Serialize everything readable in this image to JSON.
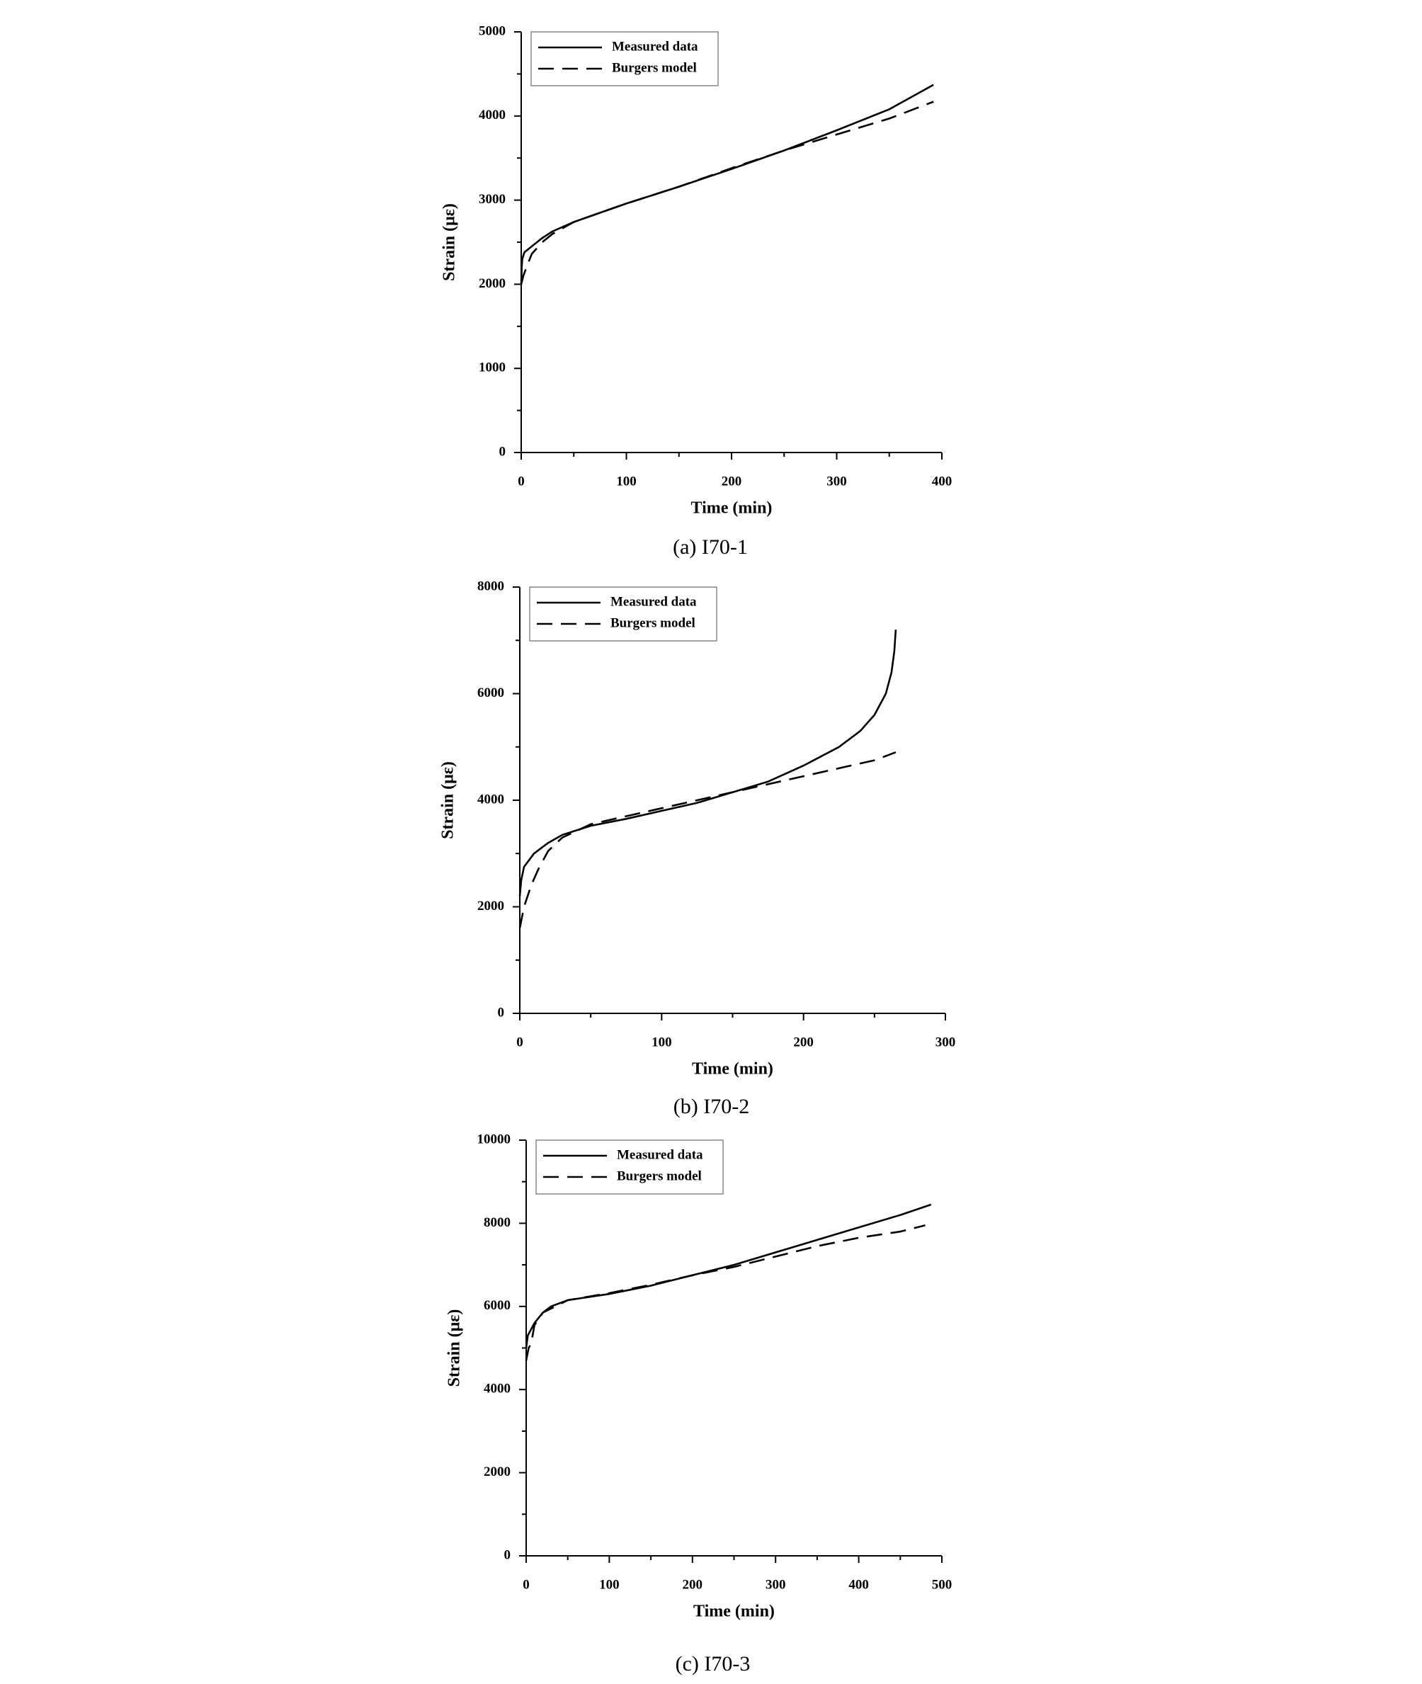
{
  "chart_data": [
    {
      "type": "line",
      "caption": "(a) I70-1",
      "xlabel": "Time (min)",
      "ylabel": "Strain (με)",
      "xlim": [
        0,
        400
      ],
      "ylim": [
        0,
        5000
      ],
      "xticks": [
        0,
        100,
        200,
        300,
        400
      ],
      "yticks": [
        0,
        1000,
        2000,
        3000,
        4000,
        5000
      ],
      "xminorticks": [
        50,
        150,
        250,
        350
      ],
      "yminorticks": [
        500,
        1500,
        2500,
        3500,
        4500
      ],
      "legend": "upper left",
      "series": [
        {
          "name": "Measured data",
          "color": "#000000",
          "style": "solid",
          "x": [
            0,
            0.5,
            1,
            3,
            10,
            20,
            30,
            50,
            75,
            100,
            150,
            200,
            250,
            300,
            350,
            392
          ],
          "values": [
            2000,
            2200,
            2300,
            2380,
            2450,
            2550,
            2630,
            2740,
            2850,
            2960,
            3160,
            3370,
            3590,
            3830,
            4080,
            4370
          ]
        },
        {
          "name": "Burgers model",
          "color": "#000000",
          "style": "dashed",
          "x": [
            0,
            2,
            5,
            10,
            20,
            30,
            50,
            100,
            150,
            200,
            250,
            300,
            350,
            392
          ],
          "values": [
            2000,
            2100,
            2200,
            2360,
            2500,
            2600,
            2740,
            2960,
            3160,
            3380,
            3590,
            3780,
            3970,
            4170
          ]
        }
      ]
    },
    {
      "type": "line",
      "caption": "(b) I70-2",
      "xlabel": "Time (min)",
      "ylabel": "Strain (με)",
      "xlim": [
        0,
        300
      ],
      "ylim": [
        0,
        8000
      ],
      "xticks": [
        0,
        100,
        200,
        300
      ],
      "yticks": [
        0,
        2000,
        4000,
        6000,
        8000
      ],
      "xminorticks": [
        50,
        150,
        250
      ],
      "yminorticks": [
        1000,
        3000,
        5000,
        7000
      ],
      "legend": "upper left",
      "series": [
        {
          "name": "Measured data",
          "color": "#000000",
          "style": "solid",
          "x": [
            0,
            1,
            3,
            10,
            20,
            30,
            50,
            75,
            100,
            125,
            150,
            175,
            200,
            225,
            240,
            250,
            258,
            262,
            264,
            265
          ],
          "values": [
            2200,
            2500,
            2750,
            3000,
            3200,
            3350,
            3520,
            3650,
            3800,
            3950,
            4150,
            4350,
            4650,
            5000,
            5300,
            5600,
            6000,
            6400,
            6800,
            7200
          ]
        },
        {
          "name": "Burgers model",
          "color": "#000000",
          "style": "dashed",
          "x": [
            0,
            3,
            8,
            13,
            20,
            30,
            50,
            100,
            150,
            200,
            250,
            265
          ],
          "values": [
            1600,
            2000,
            2400,
            2700,
            3050,
            3300,
            3550,
            3850,
            4150,
            4450,
            4750,
            4900
          ]
        }
      ]
    },
    {
      "type": "line",
      "caption": "(c) I70-3",
      "xlabel": "Time (min)",
      "ylabel": "Strain (με)",
      "xlim": [
        0,
        500
      ],
      "ylim": [
        0,
        10000
      ],
      "xticks": [
        0,
        100,
        200,
        300,
        400,
        500
      ],
      "yticks": [
        0,
        2000,
        4000,
        6000,
        8000,
        10000
      ],
      "xminorticks": [
        50,
        150,
        250,
        350,
        450
      ],
      "yminorticks": [
        1000,
        3000,
        5000,
        7000,
        9000
      ],
      "legend": "upper left",
      "series": [
        {
          "name": "Measured data",
          "color": "#000000",
          "style": "solid",
          "x": [
            0,
            2,
            10,
            20,
            30,
            50,
            100,
            150,
            200,
            250,
            300,
            350,
            400,
            450,
            487
          ],
          "values": [
            5000,
            5300,
            5600,
            5850,
            6000,
            6150,
            6300,
            6500,
            6750,
            7000,
            7300,
            7600,
            7900,
            8200,
            8450
          ]
        },
        {
          "name": "Burgers model",
          "color": "#000000",
          "style": "dashed",
          "x": [
            0,
            3,
            6,
            10,
            20,
            50,
            100,
            150,
            200,
            250,
            300,
            350,
            400,
            450,
            480
          ],
          "values": [
            4700,
            5000,
            5100,
            5550,
            5850,
            6150,
            6320,
            6520,
            6750,
            6950,
            7200,
            7450,
            7650,
            7800,
            7950
          ]
        }
      ]
    }
  ]
}
